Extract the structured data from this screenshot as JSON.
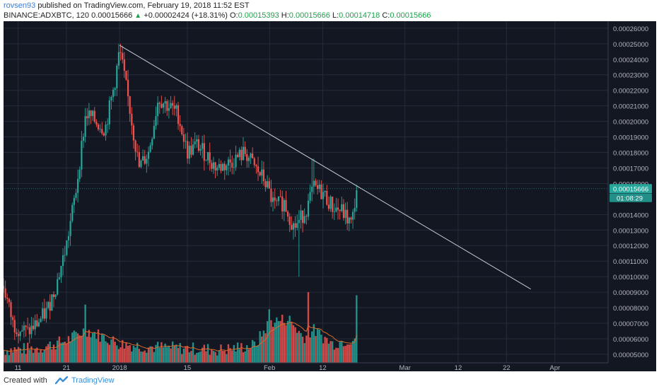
{
  "header": {
    "user": "rovsen93",
    "published": "published on TradingView.com, February 19, 2018 11:52 EST",
    "symbol": "BINANCE:ADXBTC, 120",
    "last": "0.00015666",
    "change": "+0.00002424 (+18.31%)",
    "o_label": "O:",
    "o_val": "0.00015393",
    "h_label": "H:",
    "h_val": "0.00015666",
    "l_label": "L:",
    "l_val": "0.00014718",
    "c_label": "C:",
    "c_val": "0.00015666"
  },
  "footer": {
    "created": "Created with",
    "brand": "TradingView"
  },
  "colors": {
    "bg": "#131722",
    "grid": "#262b3b",
    "up": "#26a69a",
    "down": "#ef5350",
    "text": "#b2b5be",
    "ma": "#d96a2a",
    "trend": "#c8ccd6",
    "price_tag": "#26a69a"
  },
  "chart_data": {
    "type": "candlestick",
    "symbol": "BINANCE:ADXBTC",
    "interval": "120",
    "y_ticks": [
      "0.00026000",
      "0.00025000",
      "0.00024000",
      "0.00023000",
      "0.00022000",
      "0.00021000",
      "0.00020000",
      "0.00019000",
      "0.00018000",
      "0.00017000",
      "0.00016000",
      "0.00014000",
      "0.00013000",
      "0.00012000",
      "0.00011000",
      "0.00010000",
      "0.00009000",
      "0.00008000",
      "0.00007000",
      "0.00006000",
      "0.00005000"
    ],
    "y_tick_values": [
      0.00026,
      0.00025,
      0.00024,
      0.00023,
      0.00022,
      0.00021,
      0.0002,
      0.00019,
      0.00018,
      0.00017,
      0.00016,
      0.00014,
      0.00013,
      0.00012,
      0.00011,
      0.0001,
      9e-05,
      8e-05,
      7e-05,
      6e-05,
      5e-05
    ],
    "ylim": [
      4.45e-05,
      0.0002645
    ],
    "x_ticks": [
      "11",
      "21",
      "2018",
      "15",
      "Feb",
      "12",
      "Mar",
      "12",
      "22",
      "Apr"
    ],
    "x_tick_positions": [
      "2017-12-11",
      "2017-12-21",
      "2018-01-01",
      "2018-01-15",
      "2018-02-01",
      "2018-02-12",
      "2018-03-01",
      "2018-03-12",
      "2018-03-22",
      "2018-04-01"
    ],
    "xlim": [
      "2017-12-08",
      "2018-04-12"
    ],
    "price_path": [
      [
        "2017-12-08",
        9.4e-05
      ],
      [
        "2017-12-10",
        6.9e-05
      ],
      [
        "2017-12-13",
        6.4e-05
      ],
      [
        "2017-12-15",
        7e-05
      ],
      [
        "2017-12-17",
        7.8e-05
      ],
      [
        "2017-12-19",
        9.6e-05
      ],
      [
        "2017-12-21",
        0.00012
      ],
      [
        "2017-12-23",
        0.000156
      ],
      [
        "2017-12-25",
        0.000205
      ],
      [
        "2017-12-27",
        0.0002
      ],
      [
        "2017-12-29",
        0.000195
      ],
      [
        "2017-12-31",
        0.000225
      ],
      [
        "2018-01-01",
        0.000246
      ],
      [
        "2018-01-03",
        0.00021
      ],
      [
        "2018-01-05",
        0.00017
      ],
      [
        "2018-01-07",
        0.00018
      ],
      [
        "2018-01-09",
        0.000215
      ],
      [
        "2018-01-11",
        0.00021
      ],
      [
        "2018-01-13",
        0.000205
      ],
      [
        "2018-01-15",
        0.00018
      ],
      [
        "2018-01-17",
        0.000185
      ],
      [
        "2018-01-19",
        0.000178
      ],
      [
        "2018-01-21",
        0.00017
      ],
      [
        "2018-01-23",
        0.000172
      ],
      [
        "2018-01-25",
        0.000176
      ],
      [
        "2018-01-27",
        0.00018
      ],
      [
        "2018-01-29",
        0.00017
      ],
      [
        "2018-01-31",
        0.000162
      ],
      [
        "2018-02-02",
        0.000145
      ],
      [
        "2018-02-04",
        0.000148
      ],
      [
        "2018-02-06",
        0.000132
      ],
      [
        "2018-02-07",
        0.000135
      ],
      [
        "2018-02-09",
        0.000146
      ],
      [
        "2018-02-10",
        0.000157
      ],
      [
        "2018-02-12",
        0.000154
      ],
      [
        "2018-02-14",
        0.000145
      ],
      [
        "2018-02-16",
        0.000142
      ],
      [
        "2018-02-18",
        0.000133
      ],
      [
        "2018-02-19",
        0.0001567
      ]
    ],
    "volume_path": [
      [
        "2017-12-08",
        5.2e-05
      ],
      [
        "2017-12-15",
        5.3e-05
      ],
      [
        "2017-12-21",
        5.8e-05
      ],
      [
        "2017-12-25",
        6.5e-05
      ],
      [
        "2017-12-29",
        6e-05
      ],
      [
        "2018-01-01",
        5.6e-05
      ],
      [
        "2018-01-07",
        5.4e-05
      ],
      [
        "2018-01-15",
        5.3e-05
      ],
      [
        "2018-01-22",
        5.2e-05
      ],
      [
        "2018-01-29",
        5.5e-05
      ],
      [
        "2018-02-01",
        7e-05
      ],
      [
        "2018-02-05",
        7.2e-05
      ],
      [
        "2018-02-08",
        6e-05
      ],
      [
        "2018-02-10",
        6.5e-05
      ],
      [
        "2018-02-14",
        5.6e-05
      ],
      [
        "2018-02-19",
        6e-05
      ]
    ],
    "volume_spikes": [
      [
        "2017-12-25",
        8.2e-05
      ],
      [
        "2018-02-01",
        7.9e-05
      ],
      [
        "2018-02-09",
        9e-05
      ],
      [
        "2018-02-19",
        8.8e-05
      ]
    ],
    "price_low_extremes": [
      [
        "2018-02-07",
        0.0001
      ]
    ],
    "price_high_extremes": [
      [
        "2018-01-01",
        0.00025
      ],
      [
        "2018-02-10",
        0.000176
      ]
    ],
    "trendline": {
      "from": [
        "2018-01-01",
        0.000249
      ],
      "to": [
        "2018-03-27",
        9.2e-05
      ]
    },
    "last_price": {
      "value": 0.00015666,
      "label": "0.00015666",
      "countdown": "01:08:29"
    }
  }
}
